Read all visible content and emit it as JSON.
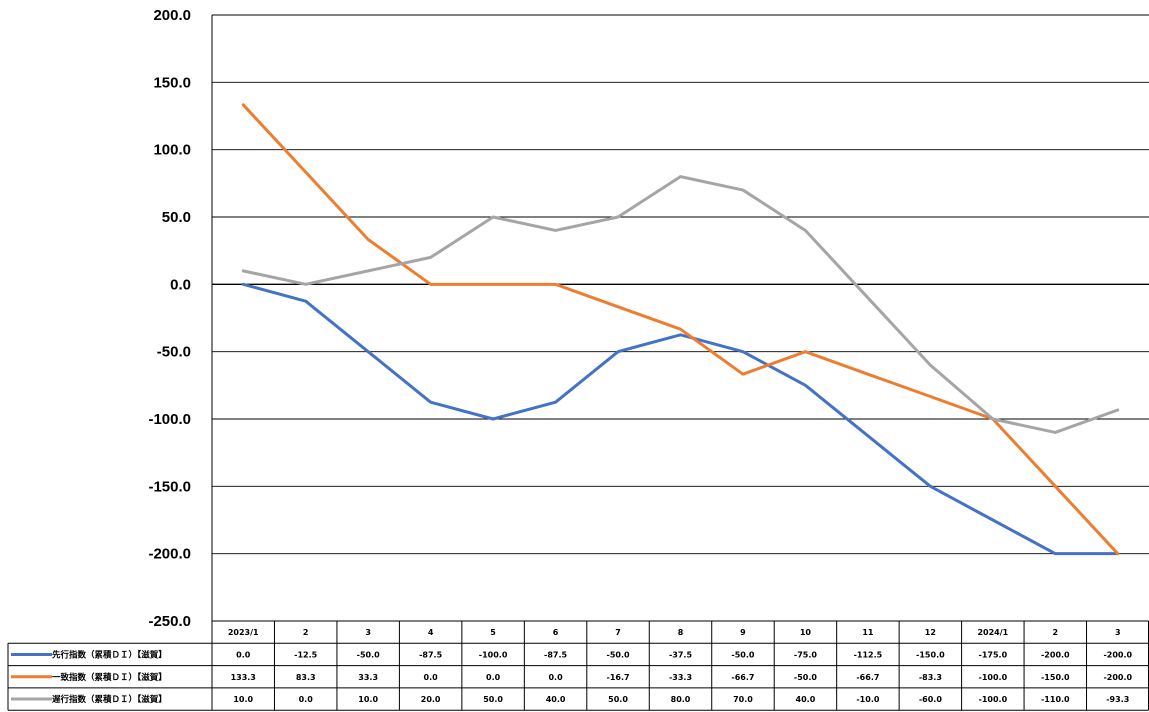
{
  "chart_data": {
    "type": "line",
    "title": "",
    "xlabel": "",
    "ylabel": "",
    "ylim": [
      -250,
      200
    ],
    "yticks": [
      200,
      150,
      100,
      50,
      0,
      -50,
      -100,
      -150,
      -200,
      -250
    ],
    "ytick_labels": [
      "200.0",
      "150.0",
      "100.0",
      "50.0",
      "0.0",
      "-50.0",
      "-100.0",
      "-150.0",
      "-200.0",
      "-250.0"
    ],
    "grid": true,
    "legend": "data-table-bottom",
    "categories": [
      "2023/1",
      "2",
      "3",
      "4",
      "5",
      "6",
      "7",
      "8",
      "9",
      "10",
      "11",
      "12",
      "2024/1",
      "2",
      "3"
    ],
    "series": [
      {
        "name": "先行指数（累積ＤＩ）【滋賀】",
        "color": "#4472C4",
        "values": [
          0.0,
          -12.5,
          -50.0,
          -87.5,
          -100.0,
          -87.5,
          -50.0,
          -37.5,
          -50.0,
          -75.0,
          -112.5,
          -150.0,
          -175.0,
          -200.0,
          -200.0
        ],
        "labels": [
          "0.0",
          "-12.5",
          "-50.0",
          "-87.5",
          "-100.0",
          "-87.5",
          "-50.0",
          "-37.5",
          "-50.0",
          "-75.0",
          "-112.5",
          "-150.0",
          "-175.0",
          "-200.0",
          "-200.0"
        ]
      },
      {
        "name": "一致指数（累積ＤＩ）【滋賀】",
        "color": "#ED7D31",
        "values": [
          133.3,
          83.3,
          33.3,
          0.0,
          0.0,
          0.0,
          -16.7,
          -33.3,
          -66.7,
          -50.0,
          -66.7,
          -83.3,
          -100.0,
          -150.0,
          -200.0
        ],
        "labels": [
          "133.3",
          "83.3",
          "33.3",
          "0.0",
          "0.0",
          "0.0",
          "-16.7",
          "-33.3",
          "-66.7",
          "-50.0",
          "-66.7",
          "-83.3",
          "-100.0",
          "-150.0",
          "-200.0"
        ]
      },
      {
        "name": "遅行指数（累積ＤＩ）【滋賀】",
        "color": "#A5A5A5",
        "values": [
          10.0,
          0.0,
          10.0,
          20.0,
          50.0,
          40.0,
          50.0,
          80.0,
          70.0,
          40.0,
          -10.0,
          -60.0,
          -100.0,
          -110.0,
          -93.3
        ],
        "labels": [
          "10.0",
          "0.0",
          "10.0",
          "20.0",
          "50.0",
          "40.0",
          "50.0",
          "80.0",
          "70.0",
          "40.0",
          "-10.0",
          "-60.0",
          "-100.0",
          "-110.0",
          "-93.3"
        ]
      }
    ]
  }
}
